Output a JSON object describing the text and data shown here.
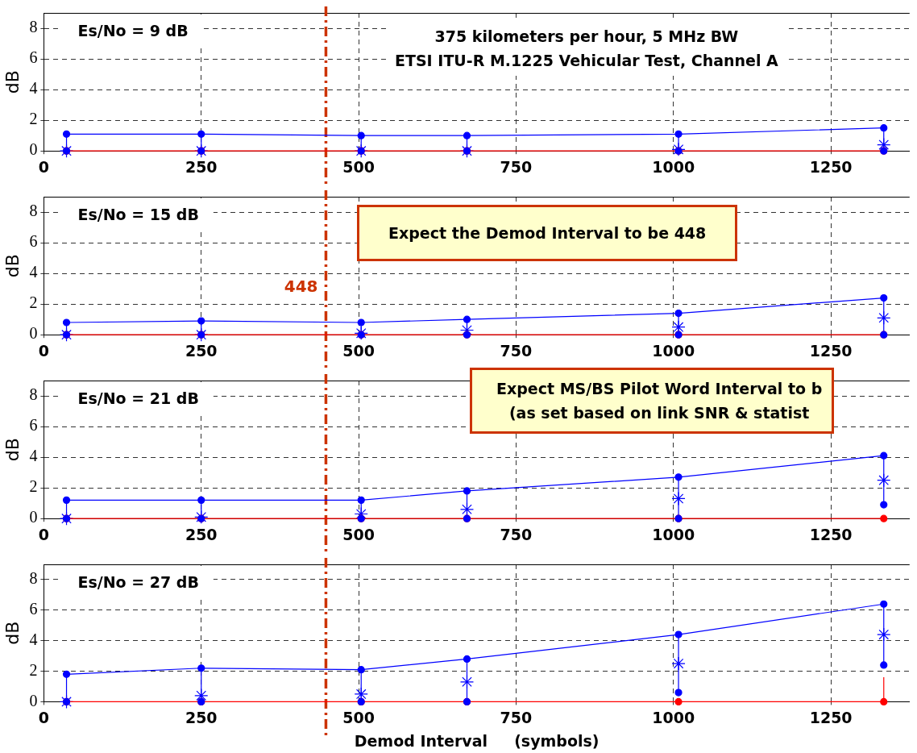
{
  "chart_data": [
    {
      "type": "line",
      "title": "Es/No = 9 dB",
      "ylabel": "dB",
      "annotations": [
        "375 kilometers per hour, 5 MHz BW",
        "ETSI ITU-R M.1225 Vehicular Test, Channel A"
      ],
      "x": [
        36,
        250,
        504,
        672,
        1008,
        1334
      ],
      "xlim": [
        0,
        1375
      ],
      "xticks": [
        0,
        250,
        500,
        750,
        1000,
        1250
      ],
      "ylim": [
        0,
        9
      ],
      "yticks": [
        0,
        2,
        4,
        6,
        8
      ],
      "grid": true,
      "legend": false,
      "ref_lines": [
        {
          "axis": "x",
          "value": 448,
          "label": null,
          "color": "#cc3300",
          "line_style": "dashdot"
        }
      ],
      "series": [
        {
          "type": "line",
          "marker": "circle",
          "color": "#0000ff",
          "values": [
            1.1,
            1.1,
            1.0,
            1.0,
            1.1,
            1.5
          ],
          "errors": [
            [
              0,
              1.1
            ],
            [
              0,
              1.1
            ],
            [
              0,
              1.0
            ],
            [
              0,
              1.0
            ],
            [
              0,
              1.1
            ],
            [
              0,
              1.5
            ]
          ]
        },
        {
          "type": "scatter",
          "marker": "circle",
          "color": "#0000ff",
          "values": [
            0,
            0,
            0,
            0,
            0,
            0
          ]
        },
        {
          "type": "scatter",
          "marker": "cross",
          "color": "#0000ff",
          "values": [
            0,
            0,
            0,
            0,
            0.1,
            0.4
          ]
        },
        {
          "type": "line",
          "marker": "circle",
          "color": "#ff0000",
          "values": [
            0,
            0,
            0,
            0,
            0,
            0
          ]
        }
      ]
    },
    {
      "type": "line",
      "title": "Es/No = 15 dB",
      "ylabel": "dB",
      "annotations": [
        "Expect the Demod Interval to be 448"
      ],
      "x": [
        36,
        250,
        504,
        672,
        1008,
        1334
      ],
      "xlim": [
        0,
        1375
      ],
      "xticks": [
        0,
        250,
        500,
        750,
        1000,
        1250
      ],
      "ylim": [
        0,
        9
      ],
      "yticks": [
        0,
        2,
        4,
        6,
        8
      ],
      "grid": true,
      "legend": false,
      "ref_lines": [
        {
          "axis": "x",
          "value": 448,
          "label": "448",
          "color": "#cc3300",
          "line_style": "dashdot"
        }
      ],
      "series": [
        {
          "type": "line",
          "marker": "circle",
          "color": "#0000ff",
          "values": [
            0.8,
            0.9,
            0.8,
            1.0,
            1.4,
            2.4
          ],
          "errors": [
            [
              0,
              0.8
            ],
            [
              0,
              0.9
            ],
            [
              0,
              0.8
            ],
            [
              0,
              1.0
            ],
            [
              0,
              1.4
            ],
            [
              0,
              2.4
            ]
          ]
        },
        {
          "type": "scatter",
          "marker": "circle",
          "color": "#0000ff",
          "values": [
            0,
            0,
            0,
            0,
            0,
            0
          ]
        },
        {
          "type": "scatter",
          "marker": "cross",
          "color": "#0000ff",
          "values": [
            0,
            0,
            0.1,
            0.3,
            0.5,
            1.1
          ]
        },
        {
          "type": "line",
          "marker": "circle",
          "color": "#ff0000",
          "values": [
            0,
            0,
            0,
            0,
            0,
            0
          ]
        }
      ]
    },
    {
      "type": "line",
      "title": "Es/No = 21 dB",
      "ylabel": "dB",
      "annotations": [
        "Expect MS/BS Pilot Word Interval to b",
        "(as set based on link SNR & statist"
      ],
      "x": [
        36,
        250,
        504,
        672,
        1008,
        1334
      ],
      "xlim": [
        0,
        1375
      ],
      "xticks": [
        0,
        250,
        500,
        750,
        1000,
        1250
      ],
      "ylim": [
        0,
        9
      ],
      "yticks": [
        0,
        2,
        4,
        6,
        8
      ],
      "grid": true,
      "legend": false,
      "ref_lines": [
        {
          "axis": "x",
          "value": 448,
          "label": null,
          "color": "#cc3300",
          "line_style": "dashdot"
        }
      ],
      "series": [
        {
          "type": "line",
          "marker": "circle",
          "color": "#0000ff",
          "values": [
            1.2,
            1.2,
            1.2,
            1.8,
            2.7,
            4.1
          ],
          "errors": [
            [
              0,
              1.2
            ],
            [
              0,
              1.2
            ],
            [
              0,
              1.2
            ],
            [
              0,
              1.8
            ],
            [
              0,
              2.7
            ],
            [
              0.9,
              4.1
            ]
          ]
        },
        {
          "type": "scatter",
          "marker": "circle",
          "color": "#0000ff",
          "values": [
            0,
            0,
            0,
            0,
            0,
            0.9
          ]
        },
        {
          "type": "scatter",
          "marker": "cross",
          "color": "#0000ff",
          "values": [
            0,
            0.1,
            0.3,
            0.6,
            1.3,
            2.5
          ]
        },
        {
          "type": "line",
          "marker": "circle",
          "color": "#ff0000",
          "values": [
            0,
            0,
            0,
            0,
            0,
            0
          ]
        }
      ]
    },
    {
      "type": "line",
      "title": "Es/No = 27 dB",
      "ylabel": "dB",
      "xlabel": "Demod Interval     (symbols)",
      "x": [
        36,
        250,
        504,
        672,
        1008,
        1334
      ],
      "xlim": [
        0,
        1375
      ],
      "xticks": [
        0,
        250,
        500,
        750,
        1000,
        1250
      ],
      "ylim": [
        0,
        9
      ],
      "yticks": [
        0,
        2,
        4,
        6,
        8
      ],
      "grid": true,
      "legend": false,
      "ref_lines": [
        {
          "axis": "x",
          "value": 448,
          "label": null,
          "color": "#cc3300",
          "line_style": "dashdot"
        }
      ],
      "series": [
        {
          "type": "line",
          "marker": "circle",
          "color": "#0000ff",
          "values": [
            1.8,
            2.2,
            2.1,
            2.8,
            4.4,
            6.4
          ],
          "errors": [
            [
              0,
              1.8
            ],
            [
              0,
              2.2
            ],
            [
              0,
              2.1
            ],
            [
              0,
              2.8
            ],
            [
              0.6,
              4.4
            ],
            [
              2.4,
              6.4
            ]
          ]
        },
        {
          "type": "scatter",
          "marker": "circle",
          "color": "#0000ff",
          "values": [
            0,
            0,
            0,
            0,
            0.6,
            2.4
          ]
        },
        {
          "type": "scatter",
          "marker": "cross",
          "color": "#0000ff",
          "values": [
            0,
            0.4,
            0.5,
            1.3,
            2.5,
            4.4
          ]
        },
        {
          "type": "line",
          "marker": "circle",
          "color": "#ff0000",
          "values": [
            0,
            0,
            0,
            0,
            0,
            0
          ],
          "errors": [
            null,
            null,
            null,
            null,
            null,
            [
              0,
              1.6
            ]
          ]
        }
      ]
    }
  ]
}
